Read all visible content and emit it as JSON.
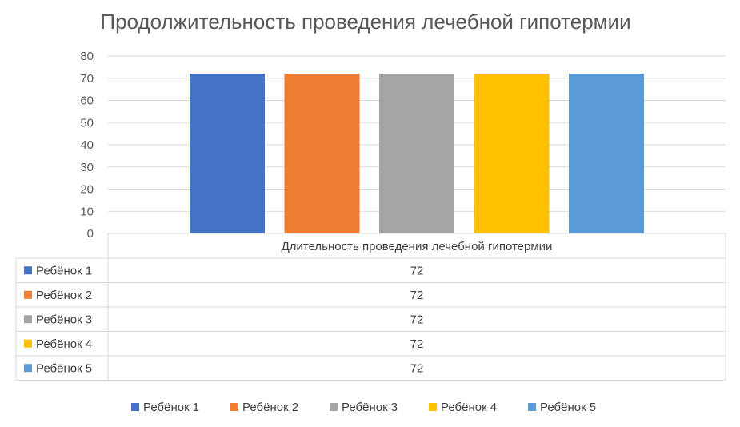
{
  "chart_data": {
    "type": "bar",
    "title": "Продолжительность проведения лечебной гипотермии",
    "categories": [
      "Длительность проведения лечебной гипотермии"
    ],
    "series": [
      {
        "name": "Ребёнок 1",
        "values": [
          72
        ],
        "color": "#4472C4"
      },
      {
        "name": "Ребёнок 2",
        "values": [
          72
        ],
        "color": "#ED7D31"
      },
      {
        "name": "Ребёнок 3",
        "values": [
          72
        ],
        "color": "#A5A5A5"
      },
      {
        "name": "Ребёнок 4",
        "values": [
          72
        ],
        "color": "#FFC000"
      },
      {
        "name": "Ребёнок 5",
        "values": [
          72
        ],
        "color": "#5B9BD5"
      }
    ],
    "xlabel": "",
    "ylabel": "",
    "ylim": [
      0,
      80
    ],
    "yticks": [
      0,
      10,
      20,
      30,
      40,
      50,
      60,
      70,
      80
    ],
    "grid": true,
    "data_table": true,
    "legend_position": "bottom"
  }
}
